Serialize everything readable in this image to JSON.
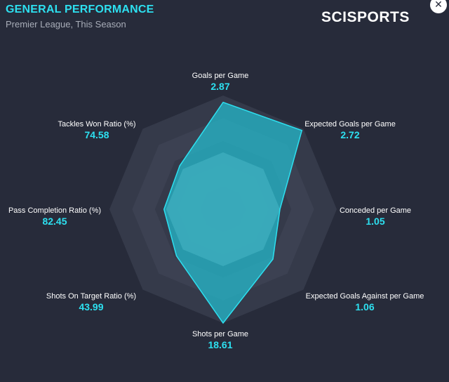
{
  "header": {
    "title": "GENERAL PERFORMANCE",
    "subtitle": "Premier League, This Season",
    "brand": "SCISPORTS",
    "close_symbol": "✕"
  },
  "colors": {
    "background": "#272b3a",
    "accent": "#2de0f0",
    "team_fill": "#25b5c6",
    "team_stroke": "#2de0f0",
    "average_fill": "#9a9aa4"
  },
  "chart_data": {
    "type": "radar",
    "title": "GENERAL PERFORMANCE",
    "subtitle": "Premier League, This Season",
    "rings": 5,
    "axes": [
      {
        "label": "Goals per Game",
        "value": "2.87"
      },
      {
        "label": "Expected Goals per Game",
        "value": "2.72"
      },
      {
        "label": "Conceded per Game",
        "value": "1.05"
      },
      {
        "label": "Expected Goals Against per Game",
        "value": "1.06"
      },
      {
        "label": "Shots per Game",
        "value": "18.61"
      },
      {
        "label": "Shots On Target Ratio (%)",
        "value": "43.99"
      },
      {
        "label": "Pass Completion Ratio (%)",
        "value": "82.45"
      },
      {
        "label": "Tackles Won Ratio (%)",
        "value": "74.58"
      }
    ],
    "series": [
      {
        "normalized": [
          0.5,
          0.5,
          0.5,
          0.5,
          0.5,
          0.5,
          0.5,
          0.5
        ],
        "color": "#9a9aa4"
      },
      {
        "normalized": [
          0.94,
          0.98,
          0.5,
          0.62,
          1.0,
          0.58,
          0.52,
          0.54
        ],
        "color": "#25b5c6"
      }
    ]
  }
}
